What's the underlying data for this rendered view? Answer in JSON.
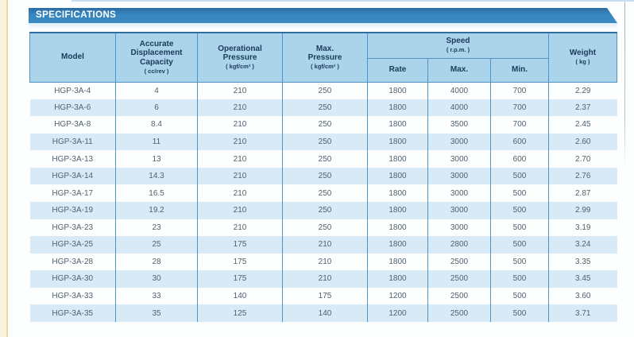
{
  "page": {
    "title": "SPECIFICATIONS"
  },
  "colors": {
    "banner_blue": "#3786be",
    "banner_dark": "#2b6da4",
    "header_cell_bg": "#abd3ea",
    "stripe_row_bg": "#d8eaf6",
    "border_blue": "#4e94c6",
    "header_text": "#1b3a5c",
    "data_text": "#51616f",
    "left_strip": "#faf4dc"
  },
  "table": {
    "columns": [
      "model",
      "capacity",
      "op_pressure",
      "max_pressure",
      "rate",
      "max",
      "min",
      "weight"
    ],
    "headers": {
      "model": "Model",
      "capacity": "Accurate\nDisplacement\nCapacity",
      "capacity_unit": "( cc/rev )",
      "op_pressure": "Operational\nPressure",
      "op_pressure_unit": "( kgf/cm² )",
      "max_pressure": "Max.\nPressure",
      "max_pressure_unit": "( kgf/cm² )",
      "speed": "Speed",
      "speed_unit": "( r.p.m. )",
      "rate": "Rate",
      "max": "Max.",
      "min": "Min.",
      "weight": "Weight",
      "weight_unit": "( kg )"
    },
    "rows": [
      {
        "model": "HGP-3A-4",
        "capacity": "4",
        "op_pressure": "210",
        "max_pressure": "250",
        "rate": "1800",
        "max": "4000",
        "min": "700",
        "weight": "2.29"
      },
      {
        "model": "HGP-3A-6",
        "capacity": "6",
        "op_pressure": "210",
        "max_pressure": "250",
        "rate": "1800",
        "max": "4000",
        "min": "700",
        "weight": "2.37"
      },
      {
        "model": "HGP-3A-8",
        "capacity": "8.4",
        "op_pressure": "210",
        "max_pressure": "250",
        "rate": "1800",
        "max": "3500",
        "min": "700",
        "weight": "2.45"
      },
      {
        "model": "HGP-3A-11",
        "capacity": "11",
        "op_pressure": "210",
        "max_pressure": "250",
        "rate": "1800",
        "max": "3000",
        "min": "600",
        "weight": "2.60"
      },
      {
        "model": "HGP-3A-13",
        "capacity": "13",
        "op_pressure": "210",
        "max_pressure": "250",
        "rate": "1800",
        "max": "3000",
        "min": "600",
        "weight": "2.70"
      },
      {
        "model": "HGP-3A-14",
        "capacity": "14.3",
        "op_pressure": "210",
        "max_pressure": "250",
        "rate": "1800",
        "max": "3000",
        "min": "500",
        "weight": "2.76"
      },
      {
        "model": "HGP-3A-17",
        "capacity": "16.5",
        "op_pressure": "210",
        "max_pressure": "250",
        "rate": "1800",
        "max": "3000",
        "min": "500",
        "weight": "2.87"
      },
      {
        "model": "HGP-3A-19",
        "capacity": "19.2",
        "op_pressure": "210",
        "max_pressure": "250",
        "rate": "1800",
        "max": "3000",
        "min": "500",
        "weight": "2.99"
      },
      {
        "model": "HGP-3A-23",
        "capacity": "23",
        "op_pressure": "210",
        "max_pressure": "250",
        "rate": "1800",
        "max": "3000",
        "min": "500",
        "weight": "3.19"
      },
      {
        "model": "HGP-3A-25",
        "capacity": "25",
        "op_pressure": "175",
        "max_pressure": "210",
        "rate": "1800",
        "max": "2800",
        "min": "500",
        "weight": "3.24"
      },
      {
        "model": "HGP-3A-28",
        "capacity": "28",
        "op_pressure": "175",
        "max_pressure": "210",
        "rate": "1800",
        "max": "2500",
        "min": "500",
        "weight": "3.35"
      },
      {
        "model": "HGP-3A-30",
        "capacity": "30",
        "op_pressure": "175",
        "max_pressure": "210",
        "rate": "1800",
        "max": "2500",
        "min": "500",
        "weight": "3.45"
      },
      {
        "model": "HGP-3A-33",
        "capacity": "33",
        "op_pressure": "140",
        "max_pressure": "175",
        "rate": "1200",
        "max": "2500",
        "min": "500",
        "weight": "3.60"
      },
      {
        "model": "HGP-3A-35",
        "capacity": "35",
        "op_pressure": "125",
        "max_pressure": "140",
        "rate": "1200",
        "max": "2500",
        "min": "500",
        "weight": "3.71"
      }
    ]
  }
}
